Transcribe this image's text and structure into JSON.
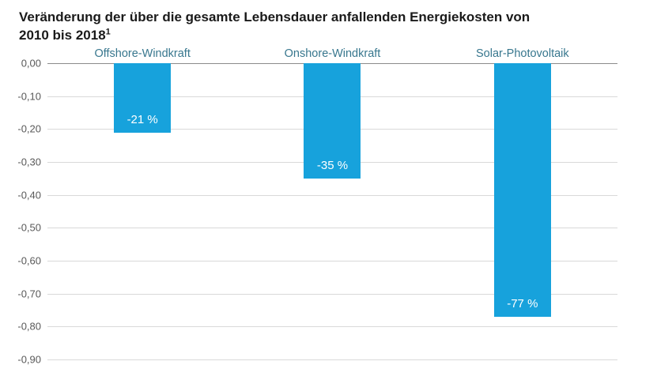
{
  "title_line1": "Veränderung der über die gesamte Lebensdauer anfallenden Energiekosten von",
  "title_line2": "2010 bis 2018",
  "title_superscript": "1",
  "chart_data": {
    "type": "bar",
    "title": "Veränderung der über die gesamte Lebensdauer anfallenden Energiekosten von 2010 bis 2018",
    "categories": [
      "Offshore-Windkraft",
      "Onshore-Windkraft",
      "Solar-Photovoltaik"
    ],
    "values": [
      -0.21,
      -0.35,
      -0.77
    ],
    "value_labels": [
      "-21 %",
      "-35 %",
      "-77 %"
    ],
    "ylim": [
      -0.9,
      0.0
    ],
    "ytick_step": 0.1,
    "ytick_labels": [
      "0,00",
      "-0,10",
      "-0,20",
      "-0,30",
      "-0,40",
      "-0,50",
      "-0,60",
      "-0,70",
      "-0,80",
      "-0,90"
    ],
    "grid": true,
    "legend": "none",
    "bar_color": "#17A2DC",
    "category_label_color": "#38778E",
    "value_label_color": "#FFFFFF",
    "gridline_color": "#d9d9d9",
    "zero_line_color": "#8c8c8c"
  }
}
